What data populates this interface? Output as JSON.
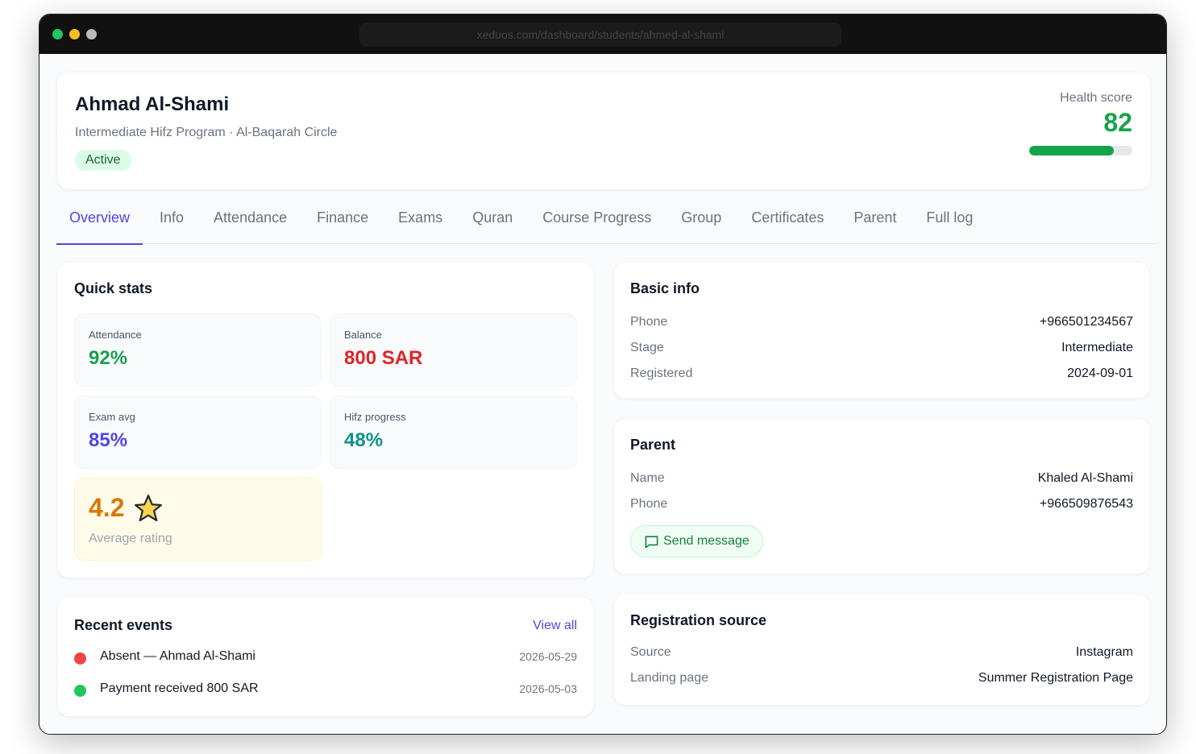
{
  "browser": {
    "url": "xeduos.com/dashboard/students/ahmed-al-shami"
  },
  "header": {
    "name": "Ahmad Al-Shami",
    "subtitle": "Intermediate Hifz Program · Al-Baqarah Circle",
    "status": "Active",
    "health_score": {
      "label": "Health score",
      "value": 82,
      "max": 100,
      "color": "#16a34a"
    }
  },
  "tabs": {
    "items": [
      "Overview",
      "Info",
      "Attendance",
      "Finance",
      "Exams",
      "Quran",
      "Course Progress",
      "Group",
      "Certificates",
      "Parent",
      "Full log"
    ],
    "active": 0
  },
  "quick_stats": {
    "title": "Quick stats",
    "items": [
      {
        "label": "Attendance",
        "value": "92%",
        "color": "#16a34a"
      },
      {
        "label": "Balance",
        "value": "800 SAR",
        "color": "#dc2626"
      },
      {
        "label": "Exam avg",
        "value": "85%",
        "color": "#4f46e5"
      },
      {
        "label": "Hifz progress",
        "value": "48%",
        "color": "#0d9488"
      }
    ],
    "rating": {
      "value": "4.2",
      "label": "Average rating",
      "color": "#d97706"
    }
  },
  "recent_events": {
    "title": "Recent events",
    "link": "View all",
    "items": [
      {
        "text": "Absent — Ahmad Al-Shami",
        "date": "2026-05-29",
        "color": "#ef4444"
      },
      {
        "text": "Payment received 800 SAR",
        "date": "2026-05-03",
        "color": "#22c55e"
      }
    ]
  },
  "basic_info": {
    "title": "Basic info",
    "rows": [
      [
        "Phone",
        "+966501234567"
      ],
      [
        "Stage",
        "Intermediate"
      ],
      [
        "Registered",
        "2024-09-01"
      ]
    ]
  },
  "parent": {
    "title": "Parent",
    "rows": [
      [
        "Name",
        "Khaled Al-Shami"
      ],
      [
        "Phone",
        "+966509876543"
      ]
    ],
    "button": "Send message"
  },
  "registration_source": {
    "title": "Registration source",
    "rows": [
      [
        "Source",
        "Instagram"
      ],
      [
        "Landing page",
        "Summer Registration Page"
      ]
    ]
  }
}
